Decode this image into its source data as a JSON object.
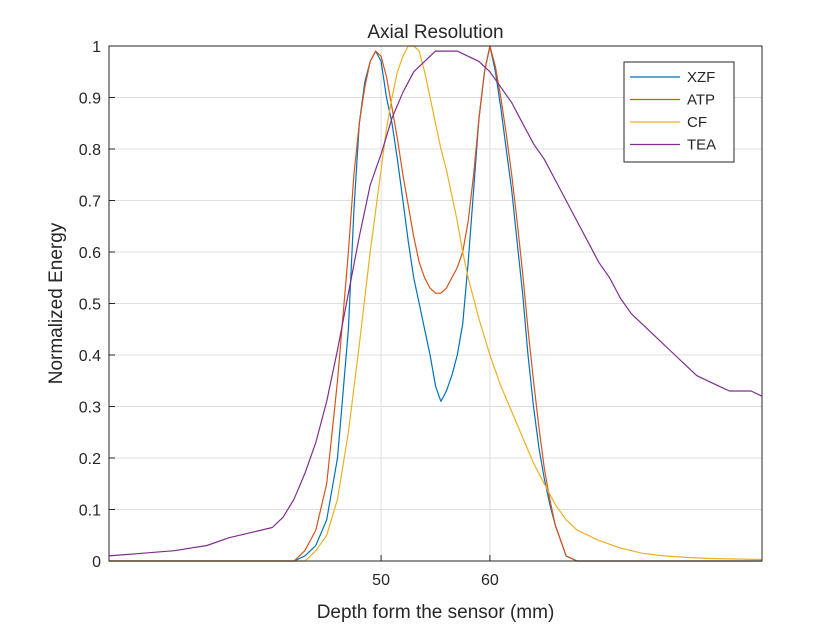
{
  "chart_data": {
    "type": "line",
    "title": "Axial Resolution",
    "xlabel": "Depth form the sensor (mm)",
    "ylabel": "Normalized Energy",
    "xlim": [
      25,
      85
    ],
    "ylim": [
      0,
      1
    ],
    "xticks": [
      50,
      60
    ],
    "yticks": [
      0,
      0.1,
      0.2,
      0.3,
      0.4,
      0.5,
      0.6,
      0.7,
      0.8,
      0.9,
      1
    ],
    "ytick_labels": [
      "0",
      "0.1",
      "0.2",
      "0.3",
      "0.4",
      "0.5",
      "0.6",
      "0.7",
      "0.8",
      "0.9",
      "1"
    ],
    "grid": true,
    "legend_position": "top-right",
    "series": [
      {
        "name": "XZF",
        "color": "#0072BD",
        "x": [
          25,
          42,
          43,
          44,
          45,
          46,
          47,
          47.5,
          48,
          48.5,
          49,
          49.5,
          50,
          50.5,
          51,
          51.5,
          52,
          52.5,
          53,
          53.5,
          54,
          54.5,
          55,
          55.5,
          56,
          56.5,
          57,
          57.5,
          58,
          58.5,
          59,
          59.5,
          60,
          60.5,
          61,
          61.5,
          62,
          62.5,
          63,
          63.5,
          64,
          64.5,
          65,
          65.5,
          66,
          66.5,
          67,
          68,
          85
        ],
        "y": [
          0,
          0,
          0.01,
          0.03,
          0.08,
          0.2,
          0.45,
          0.68,
          0.85,
          0.93,
          0.97,
          0.99,
          0.97,
          0.9,
          0.85,
          0.78,
          0.7,
          0.62,
          0.55,
          0.5,
          0.45,
          0.4,
          0.34,
          0.31,
          0.33,
          0.36,
          0.4,
          0.46,
          0.58,
          0.72,
          0.86,
          0.95,
          1.0,
          0.95,
          0.88,
          0.8,
          0.72,
          0.62,
          0.52,
          0.4,
          0.3,
          0.22,
          0.16,
          0.11,
          0.07,
          0.04,
          0.01,
          0,
          0
        ]
      },
      {
        "name": "ATP",
        "color": "#D95319",
        "x": [
          25,
          42,
          43,
          44,
          45,
          46,
          47,
          47.5,
          48,
          48.5,
          49,
          49.5,
          50,
          50.5,
          51,
          51.5,
          52,
          52.5,
          53,
          53.5,
          54,
          54.5,
          55,
          55.5,
          56,
          56.5,
          57,
          57.5,
          58,
          58.5,
          59,
          59.5,
          60,
          60.5,
          61,
          61.5,
          62,
          62.5,
          63,
          63.5,
          64,
          64.5,
          65,
          65.5,
          66,
          66.5,
          67,
          68,
          85
        ],
        "y": [
          0,
          0,
          0.02,
          0.06,
          0.15,
          0.35,
          0.6,
          0.75,
          0.85,
          0.92,
          0.97,
          0.99,
          0.98,
          0.94,
          0.88,
          0.82,
          0.75,
          0.69,
          0.63,
          0.58,
          0.55,
          0.53,
          0.52,
          0.52,
          0.53,
          0.55,
          0.57,
          0.6,
          0.66,
          0.75,
          0.86,
          0.95,
          1.0,
          0.96,
          0.9,
          0.83,
          0.75,
          0.66,
          0.56,
          0.45,
          0.35,
          0.26,
          0.18,
          0.12,
          0.07,
          0.04,
          0.01,
          0,
          0
        ]
      },
      {
        "name": "CF",
        "color": "#EDB120",
        "x": [
          25,
          43,
          44,
          45,
          46,
          47,
          48,
          49,
          50,
          50.5,
          51,
          51.5,
          52,
          52.5,
          53,
          53.5,
          54,
          54.5,
          55,
          55.5,
          56,
          56.5,
          57,
          57.5,
          58,
          59,
          60,
          61,
          62,
          63,
          64,
          65,
          66,
          67,
          68,
          70,
          72,
          74,
          76,
          78,
          80,
          82,
          85
        ],
        "y": [
          0,
          0,
          0.02,
          0.05,
          0.12,
          0.25,
          0.42,
          0.6,
          0.76,
          0.84,
          0.9,
          0.95,
          0.98,
          1.0,
          1.0,
          0.99,
          0.95,
          0.9,
          0.85,
          0.8,
          0.76,
          0.71,
          0.66,
          0.6,
          0.55,
          0.47,
          0.4,
          0.34,
          0.29,
          0.24,
          0.19,
          0.15,
          0.11,
          0.08,
          0.06,
          0.04,
          0.025,
          0.015,
          0.01,
          0.007,
          0.005,
          0.004,
          0.003
        ]
      },
      {
        "name": "TEA",
        "color": "#7E2F8E",
        "x": [
          25,
          28,
          31,
          34,
          36,
          38,
          40,
          41,
          42,
          43,
          44,
          45,
          46,
          47,
          48,
          49,
          50,
          51,
          52,
          53,
          54,
          55,
          56,
          57,
          58,
          59,
          60,
          61,
          62,
          63,
          64,
          65,
          66,
          67,
          68,
          69,
          70,
          71,
          72,
          73,
          74,
          75,
          76,
          77,
          78,
          79,
          80,
          81,
          82,
          83,
          84,
          85
        ],
        "y": [
          0.01,
          0.015,
          0.02,
          0.03,
          0.045,
          0.055,
          0.065,
          0.085,
          0.12,
          0.17,
          0.23,
          0.31,
          0.41,
          0.52,
          0.63,
          0.73,
          0.79,
          0.86,
          0.91,
          0.95,
          0.97,
          0.99,
          0.99,
          0.99,
          0.98,
          0.97,
          0.95,
          0.92,
          0.89,
          0.85,
          0.81,
          0.78,
          0.74,
          0.7,
          0.66,
          0.62,
          0.58,
          0.55,
          0.51,
          0.48,
          0.46,
          0.44,
          0.42,
          0.4,
          0.38,
          0.36,
          0.35,
          0.34,
          0.33,
          0.33,
          0.33,
          0.32
        ]
      }
    ]
  }
}
